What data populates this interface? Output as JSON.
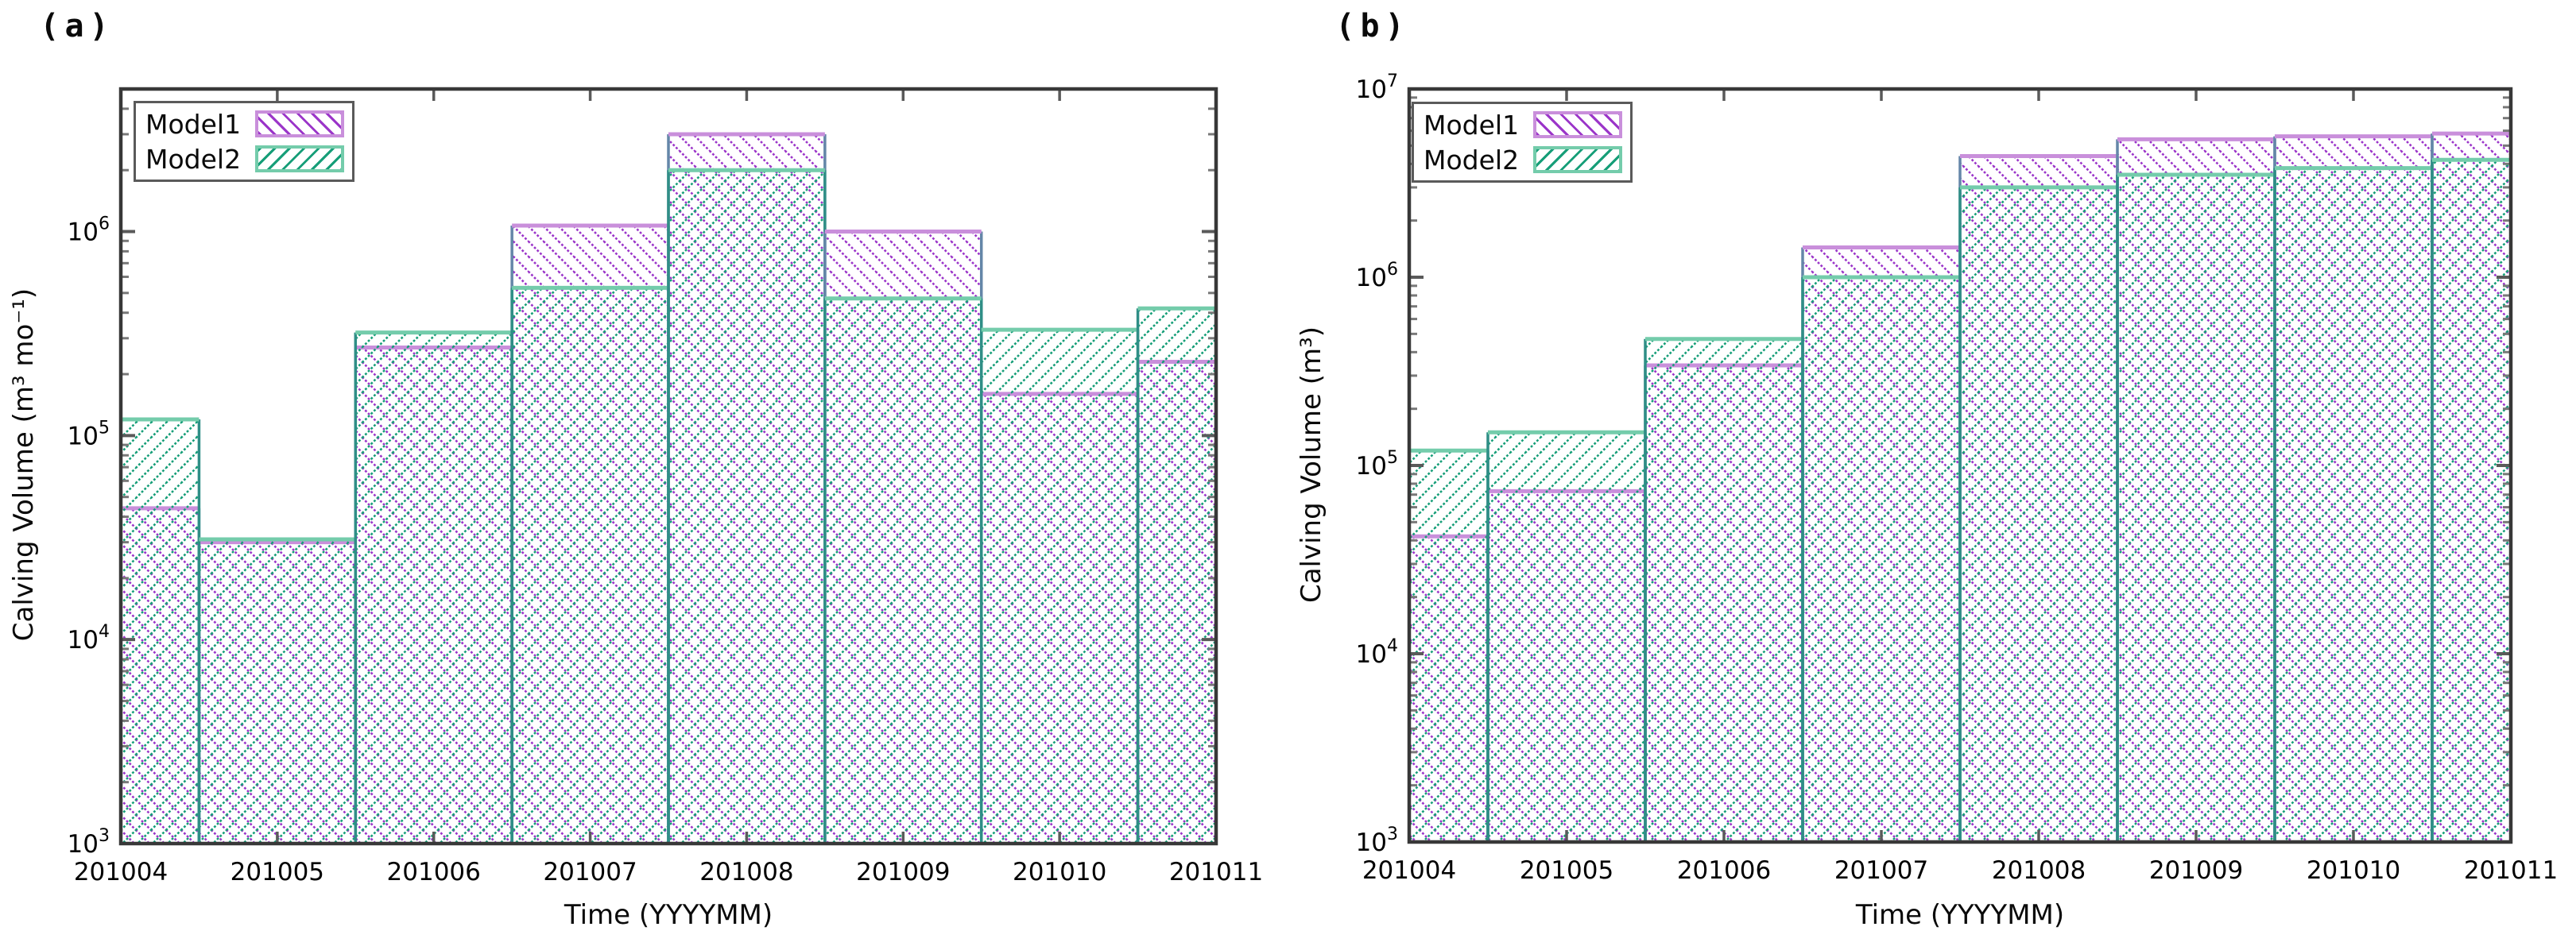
{
  "colors": {
    "model1_hatch": "#9b35c9",
    "model1_top": "#c98fdb",
    "model1_side": "#6486a8",
    "model2_hatch": "#169e78",
    "model2_top": "#74ccab",
    "model2_side": "#2f8e86",
    "frame": "#383838",
    "tick_major": "#5a5a5a",
    "tick_minor": "#787878",
    "text": "#000000"
  },
  "chart_data": [
    {
      "id": "a",
      "type": "bar",
      "title": "(a)",
      "xlabel": "Time (YYYYMM)",
      "ylabel": "Calving Volume (m³ mo⁻¹)",
      "yscale": "log",
      "ylim": [
        1000,
        5000000
      ],
      "y_tick_exponents": [
        3,
        4,
        5,
        6
      ],
      "categories": [
        "201004",
        "201005",
        "201006",
        "201007",
        "201008",
        "201009",
        "201010",
        "201011"
      ],
      "series": [
        {
          "name": "Model1",
          "hatch": "\\",
          "values": [
            44000,
            30000,
            270000,
            1070000,
            3000000,
            1000000,
            160000,
            230000
          ]
        },
        {
          "name": "Model2",
          "hatch": "/",
          "values": [
            120000,
            31000,
            320000,
            530000,
            2000000,
            470000,
            330000,
            420000
          ]
        }
      ],
      "legend_position": "top-left",
      "bar_layout": "overlapping bars centered on ticks, first and last bars half-clipped at axes",
      "grid": false
    },
    {
      "id": "b",
      "type": "bar",
      "title": "(b)",
      "xlabel": "Time (YYYYMM)",
      "ylabel": "Calving Volume (m³)",
      "yscale": "log",
      "ylim": [
        1000,
        10000000
      ],
      "y_tick_exponents": [
        3,
        4,
        5,
        6,
        7
      ],
      "categories": [
        "201004",
        "201005",
        "201006",
        "201007",
        "201008",
        "201009",
        "201010",
        "201011"
      ],
      "series": [
        {
          "name": "Model1",
          "hatch": "\\",
          "values": [
            42000,
            73000,
            340000,
            1440000,
            4400000,
            5400000,
            5600000,
            5800000
          ]
        },
        {
          "name": "Model2",
          "hatch": "/",
          "values": [
            120000,
            150000,
            470000,
            1000000,
            3000000,
            3500000,
            3800000,
            4200000
          ]
        }
      ],
      "legend_position": "top-left",
      "bar_layout": "overlapping bars centered on ticks, first and last bars half-clipped at axes",
      "grid": false
    }
  ]
}
